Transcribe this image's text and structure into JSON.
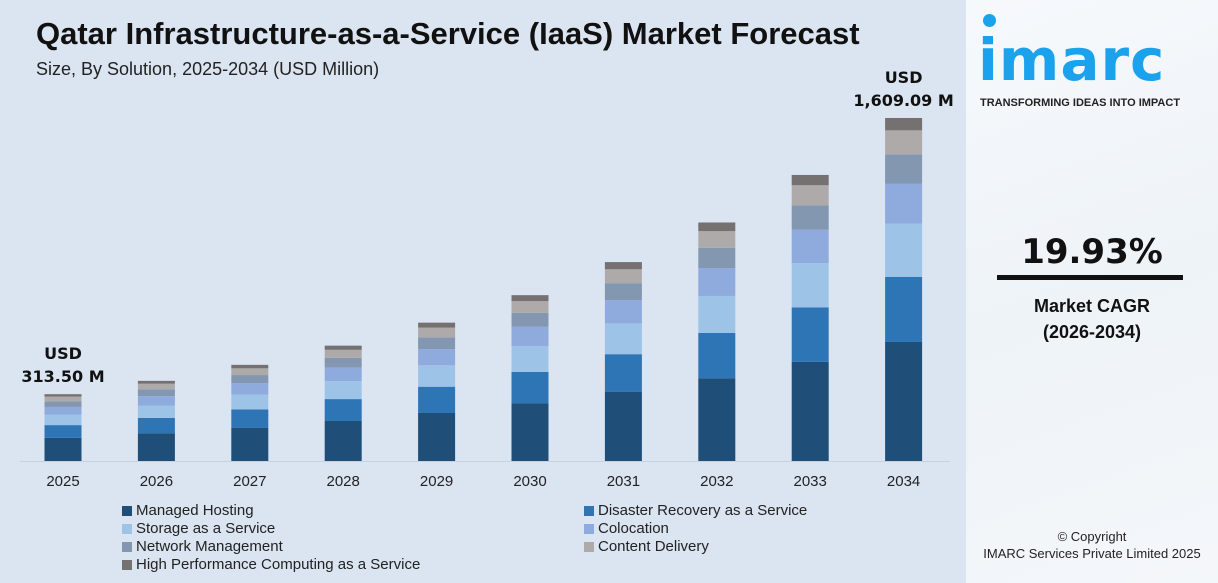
{
  "header": {
    "title": "Qatar Infrastructure-as-a-Service (IaaS) Market Forecast",
    "subtitle": "Size, By Solution, 2025-2034 (USD Million)"
  },
  "chart_data": {
    "type": "bar",
    "stacked": true,
    "title": "Qatar Infrastructure-as-a-Service (IaaS) Market Forecast",
    "subtitle": "Size, By Solution, 2025-2034 (USD Million)",
    "categories": [
      "2025",
      "2026",
      "2027",
      "2028",
      "2029",
      "2030",
      "2031",
      "2032",
      "2033",
      "2034"
    ],
    "series": [
      {
        "name": "Managed Hosting",
        "color": "#1f4e79",
        "values": [
          108.8,
          130.5,
          156.5,
          187.7,
          225.2,
          270.0,
          323.8,
          388.3,
          465.7,
          558.4
        ]
      },
      {
        "name": "Disaster Recovery as a Service",
        "color": "#2e75b6",
        "values": [
          59.6,
          71.4,
          85.7,
          102.8,
          123.3,
          147.8,
          177.3,
          212.6,
          255.0,
          305.7
        ]
      },
      {
        "name": "Storage as a Service",
        "color": "#9dc3e6",
        "values": [
          48.6,
          58.3,
          69.9,
          83.9,
          100.6,
          120.6,
          144.6,
          173.4,
          208.0,
          249.4
        ]
      },
      {
        "name": "Colocation",
        "color": "#8faadc",
        "values": [
          36.7,
          44.0,
          52.8,
          63.3,
          75.9,
          91.0,
          109.2,
          130.9,
          157.0,
          188.3
        ]
      },
      {
        "name": "Network Management",
        "color": "#8497b0",
        "values": [
          26.6,
          32.0,
          38.3,
          46.0,
          55.2,
          66.1,
          79.3,
          95.1,
          114.1,
          136.8
        ]
      },
      {
        "name": "Content Delivery",
        "color": "#aeaaaa",
        "values": [
          21.9,
          26.3,
          31.6,
          37.9,
          45.4,
          54.5,
          65.3,
          78.3,
          93.9,
          112.6
        ]
      },
      {
        "name": "High Performance Computing as a Service",
        "color": "#757171",
        "values": [
          11.3,
          13.5,
          16.2,
          19.5,
          23.4,
          28.0,
          33.6,
          40.3,
          48.3,
          57.9
        ]
      }
    ],
    "annotations": {
      "first": {
        "line1": "USD",
        "line2": "313.50 M"
      },
      "last": {
        "line1": "USD",
        "line2": "1,609.09 M"
      }
    },
    "ylim": [
      0,
      1609.09
    ],
    "grid": false,
    "legend_position": "bottom"
  },
  "sidebar": {
    "logo": "imarc",
    "tagline": "TRANSFORMING IDEAS INTO IMPACT",
    "cagr_value": "19.93%",
    "cagr_label": "Market CAGR",
    "cagr_period": "(2026-2034)",
    "copyright_line1": "© Copyright",
    "copyright_line2": "IMARC Services Private Limited 2025",
    "accent": "#1aa3ec"
  }
}
